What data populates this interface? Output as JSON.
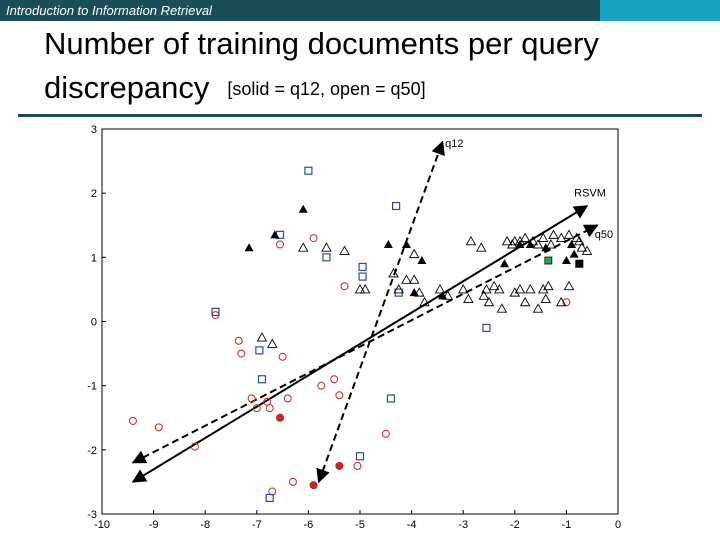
{
  "header": {
    "course": "Introduction to Information Retrieval",
    "title_line1": "Number of training documents per query",
    "title_line2": "discrepancy",
    "subtitle": "[solid = q12, open = q50]",
    "bar_color": "#1a4f5a",
    "accent_color": "#16a3c4"
  },
  "chart_data": {
    "type": "scatter",
    "xlim": [
      -10,
      0
    ],
    "ylim": [
      -3,
      3
    ],
    "x_ticks": [
      -10,
      -9,
      -8,
      -7,
      -6,
      -5,
      -4,
      -3,
      -2,
      -1,
      0
    ],
    "y_ticks": [
      3,
      2,
      1,
      0,
      -1,
      -2,
      -3
    ],
    "colors": {
      "circle": "#cc2222",
      "square": "#3344aa",
      "triangle": "#000000",
      "green": "#22aa55"
    },
    "lines": [
      {
        "label": "q12",
        "style": "dashed",
        "from": [
          -5.8,
          -2.5
        ],
        "to": [
          -3.4,
          2.8
        ]
      },
      {
        "label": "RSVM",
        "style": "solid",
        "from": [
          -9.4,
          -2.5
        ],
        "to": [
          -0.6,
          1.8
        ]
      },
      {
        "label": "q50",
        "style": "dashed",
        "from": [
          -9.4,
          -2.2
        ],
        "to": [
          -0.4,
          1.5
        ]
      }
    ],
    "series": [
      {
        "marker": "circle-open",
        "points": [
          [
            -9.4,
            -1.55
          ],
          [
            -8.9,
            -1.65
          ],
          [
            -8.2,
            -1.95
          ],
          [
            -7.8,
            0.1
          ],
          [
            -7.35,
            -0.3
          ],
          [
            -7.3,
            -0.5
          ],
          [
            -7.1,
            -1.2
          ],
          [
            -7.0,
            -1.35
          ],
          [
            -6.8,
            -1.25
          ],
          [
            -6.75,
            -1.35
          ],
          [
            -6.7,
            -2.65
          ],
          [
            -6.55,
            1.2
          ],
          [
            -6.5,
            -0.55
          ],
          [
            -6.4,
            -1.2
          ],
          [
            -6.3,
            -2.5
          ],
          [
            -5.9,
            1.3
          ],
          [
            -5.75,
            -1.0
          ],
          [
            -5.5,
            -0.9
          ],
          [
            -5.4,
            -1.15
          ],
          [
            -5.3,
            0.55
          ],
          [
            -5.05,
            -2.25
          ],
          [
            -4.5,
            -1.75
          ],
          [
            -1.0,
            0.3
          ]
        ]
      },
      {
        "marker": "circle-filled",
        "points": [
          [
            -6.55,
            -1.5
          ],
          [
            -5.9,
            -2.55
          ],
          [
            -5.4,
            -2.25
          ]
        ]
      },
      {
        "marker": "square-open",
        "points": [
          [
            -7.8,
            0.15
          ],
          [
            -6.95,
            -0.45
          ],
          [
            -6.9,
            -0.9
          ],
          [
            -6.75,
            -2.75
          ],
          [
            -6.55,
            1.35
          ],
          [
            -6.0,
            2.35
          ],
          [
            -5.65,
            1.0
          ],
          [
            -5.0,
            -2.1
          ],
          [
            -4.95,
            0.7
          ],
          [
            -4.95,
            0.85
          ],
          [
            -4.4,
            -1.2
          ],
          [
            -4.3,
            1.8
          ],
          [
            -4.25,
            0.45
          ],
          [
            -2.55,
            -0.1
          ]
        ]
      },
      {
        "marker": "square-filled",
        "points": [
          [
            -0.75,
            0.9
          ]
        ]
      },
      {
        "marker": "square-green",
        "points": [
          [
            -1.35,
            0.95
          ]
        ]
      },
      {
        "marker": "triangle-filled",
        "points": [
          [
            -7.15,
            1.15
          ],
          [
            -6.65,
            1.35
          ],
          [
            -6.1,
            1.75
          ],
          [
            -4.45,
            1.2
          ],
          [
            -4.1,
            1.2
          ],
          [
            -3.95,
            0.45
          ],
          [
            -3.8,
            0.95
          ],
          [
            -3.4,
            0.4
          ],
          [
            -2.2,
            0.9
          ],
          [
            -1.9,
            1.2
          ],
          [
            -1.7,
            1.2
          ],
          [
            -1.4,
            1.15
          ],
          [
            -1.0,
            0.95
          ],
          [
            -0.9,
            1.2
          ],
          [
            -0.85,
            1.05
          ]
        ]
      },
      {
        "marker": "triangle-open",
        "points": [
          [
            -6.9,
            -0.25
          ],
          [
            -6.7,
            -0.35
          ],
          [
            -6.1,
            1.15
          ],
          [
            -5.65,
            1.15
          ],
          [
            -5.3,
            1.1
          ],
          [
            -5.0,
            0.5
          ],
          [
            -4.9,
            0.5
          ],
          [
            -4.25,
            0.5
          ],
          [
            -4.1,
            0.65
          ],
          [
            -3.95,
            0.65
          ],
          [
            -3.85,
            0.45
          ],
          [
            -3.75,
            0.3
          ],
          [
            -3.45,
            0.5
          ],
          [
            -3.3,
            0.4
          ],
          [
            -3.0,
            0.5
          ],
          [
            -2.9,
            0.35
          ],
          [
            -2.85,
            1.25
          ],
          [
            -2.65,
            1.15
          ],
          [
            -2.6,
            0.4
          ],
          [
            -2.55,
            0.5
          ],
          [
            -2.5,
            0.3
          ],
          [
            -2.4,
            0.55
          ],
          [
            -2.3,
            0.5
          ],
          [
            -2.25,
            0.2
          ],
          [
            -2.15,
            1.25
          ],
          [
            -2.05,
            1.2
          ],
          [
            -2.0,
            0.45
          ],
          [
            -1.9,
            0.5
          ],
          [
            -1.8,
            0.3
          ],
          [
            -1.7,
            0.5
          ],
          [
            -1.55,
            0.2
          ],
          [
            -1.45,
            0.5
          ],
          [
            -1.4,
            0.35
          ],
          [
            -1.35,
            0.55
          ],
          [
            -1.9,
            1.25
          ],
          [
            -2.0,
            1.25
          ],
          [
            -1.8,
            1.3
          ],
          [
            -1.65,
            1.25
          ],
          [
            -1.55,
            1.2
          ],
          [
            -1.45,
            1.3
          ],
          [
            -1.3,
            1.2
          ],
          [
            -1.25,
            1.35
          ],
          [
            -1.1,
            1.3
          ],
          [
            -0.95,
            1.35
          ],
          [
            -0.8,
            1.3
          ],
          [
            -0.7,
            1.15
          ],
          [
            -0.6,
            1.1
          ],
          [
            -0.95,
            0.55
          ],
          [
            -1.1,
            0.3
          ],
          [
            -0.75,
            1.25
          ],
          [
            -3.95,
            1.05
          ],
          [
            -4.35,
            0.75
          ]
        ]
      }
    ],
    "labels": {
      "q12": "q12",
      "rsvm": "RSVM",
      "q50": "q50"
    }
  }
}
